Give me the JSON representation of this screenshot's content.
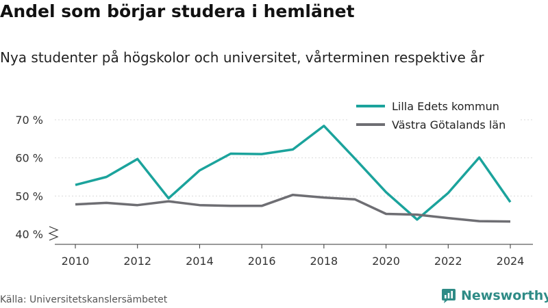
{
  "title": "Andel som börjar studera i hemlänet",
  "subtitle": "Nya studenter på högskolor och universitet, vårterminen respektive år",
  "source": "Källa: Universitetskanslersämbetet",
  "brand": {
    "name": "Newsworthy",
    "icon": "newsworthy-logo-icon",
    "color": "#2e8b86"
  },
  "chart_data": {
    "type": "line",
    "title": "Andel som börjar studera i hemlänet",
    "subtitle": "Nya studenter på högskolor och universitet, vårterminen respektive år",
    "xlabel": "",
    "ylabel": "",
    "xlim": [
      2010,
      2024
    ],
    "ylim": [
      40,
      70
    ],
    "x_ticks": [
      2010,
      2012,
      2014,
      2016,
      2018,
      2020,
      2022,
      2024
    ],
    "y_ticks": [
      40,
      50,
      60,
      70
    ],
    "y_tick_suffix": " %",
    "y_axis_break": true,
    "grid": "horizontal",
    "legend": "top-right",
    "x": [
      2010,
      2011,
      2012,
      2013,
      2014,
      2015,
      2016,
      2017,
      2018,
      2019,
      2020,
      2021,
      2022,
      2023,
      2024
    ],
    "series": [
      {
        "name": "Lilla Edets kommun",
        "color": "#1ba39c",
        "values": [
          52.9,
          55.0,
          59.7,
          49.4,
          56.7,
          61.1,
          61.0,
          62.2,
          68.4,
          59.8,
          51.0,
          43.8,
          50.8,
          60.1,
          48.4
        ]
      },
      {
        "name": "Västra Götalands län",
        "color": "#6e6e73",
        "values": [
          47.8,
          48.2,
          47.6,
          48.6,
          47.6,
          47.4,
          47.4,
          50.3,
          49.6,
          49.1,
          45.3,
          45.1,
          44.2,
          43.4,
          43.3
        ]
      }
    ]
  }
}
